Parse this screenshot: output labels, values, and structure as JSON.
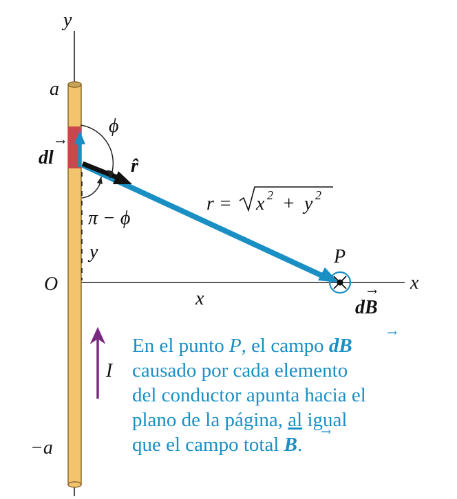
{
  "labels": {
    "y_axis": "y",
    "x_axis": "x",
    "origin": "O",
    "top_end": "a",
    "bottom_end": "−a",
    "dl_main": "dl",
    "dl_vec": "→",
    "phi": "ϕ",
    "pi_minus_phi": "π − ϕ",
    "y_dist": "y",
    "r_hat": "r̂",
    "r_eq_left": "r =",
    "r_eq_x": "x",
    "r_eq_sq1": "2",
    "r_eq_plus": "+",
    "r_eq_y": "y",
    "r_eq_sq2": "2",
    "x_dist": "x",
    "point": "P",
    "dB_main": "dB",
    "dB_vec": "→",
    "current": "I"
  },
  "caption": {
    "line1_a": "En el punto ",
    "line1_p": "P",
    "line1_b": ", el campo ",
    "line1_db": "dB",
    "line1_vec": "→",
    "line2": "causado por cada elemento",
    "line3": "del conductor apunta hacia el",
    "line4_a": "plano de la página, ",
    "line4_u": "al",
    "line4_b": " igual",
    "line5_a": "que el campo total ",
    "line5_b": "B",
    "line5_vec": "→",
    "line5_end": "."
  },
  "colors": {
    "wire": "#f3c46e",
    "wire_outline": "#8a6a2c",
    "element": "#c9474f",
    "vector_blue": "#1a8fc4",
    "caption_blue": "#1a8fc4",
    "current_arrow": "#7b2a82",
    "axis": "#222222"
  }
}
